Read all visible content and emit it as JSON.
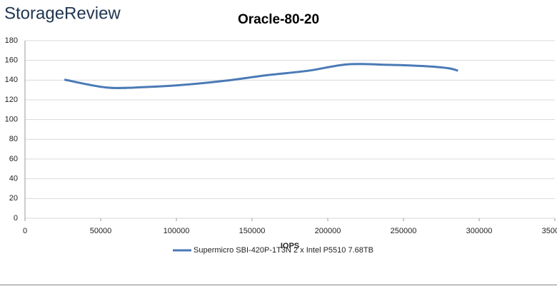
{
  "chart_data": {
    "type": "line",
    "watermark": "StorageReview",
    "title": "Oracle-80-20",
    "x_label": "IOPS",
    "xlim": [
      0,
      350000
    ],
    "xticks": [
      0,
      50000,
      100000,
      150000,
      200000,
      250000,
      300000,
      350000
    ],
    "ylim": [
      0,
      180
    ],
    "yticks": [
      0,
      20,
      40,
      60,
      80,
      100,
      120,
      140,
      160,
      180
    ],
    "grid": true,
    "legend": "bottom",
    "series": [
      {
        "name": "Supermicro SBI-420P-1T3N 2 x Intel P5510 7.68TB",
        "color": "#4a7ab5",
        "x": [
          26000,
          54000,
          80000,
          107000,
          133000,
          160000,
          187000,
          213000,
          240000,
          266000,
          280000,
          286000
        ],
        "values": [
          140.5,
          132.5,
          133,
          135.5,
          139.5,
          145,
          149.5,
          156,
          155.5,
          154,
          152,
          149.5
        ]
      }
    ]
  }
}
